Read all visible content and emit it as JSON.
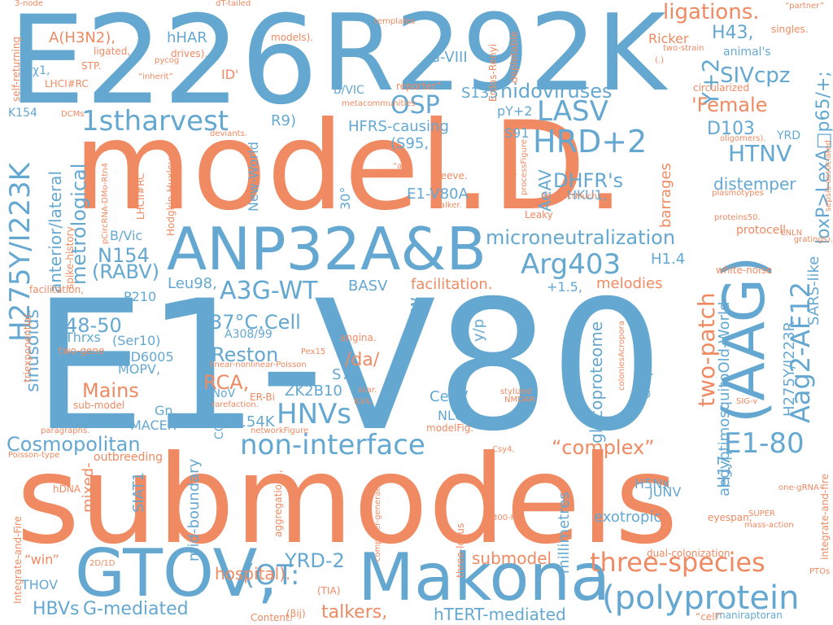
{
  "palette": {
    "blue": "#64a8d1",
    "orange": "#ef8a62"
  },
  "words": [
    {
      "text": "E1-V80",
      "color": "blue",
      "orient": "h"
    },
    {
      "text": "submodels",
      "color": "orange",
      "orient": "h"
    },
    {
      "text": "model.D.",
      "color": "orange",
      "orient": "h"
    },
    {
      "text": "E226",
      "color": "blue",
      "orient": "h"
    },
    {
      "text": "R292K",
      "color": "blue",
      "orient": "h"
    },
    {
      "text": "ANP32A&B",
      "color": "blue",
      "orient": "h"
    },
    {
      "text": "Makona",
      "color": "blue",
      "orient": "h"
    },
    {
      "text": "GTOV,",
      "color": "blue",
      "orient": "h"
    },
    {
      "text": "(AAG)",
      "color": "blue",
      "orient": "v"
    },
    {
      "text": "(polyprotein",
      "color": "blue",
      "orient": "h"
    },
    {
      "text": "three-species",
      "color": "orange",
      "orient": "h"
    },
    {
      "text": "non-interface",
      "color": "blue",
      "orient": "h"
    },
    {
      "text": "H275Y/I223K",
      "color": "blue",
      "orient": "v"
    },
    {
      "text": "Aag2-AF12",
      "color": "blue",
      "orient": "v"
    },
    {
      "text": "1stharvest",
      "color": "blue",
      "orient": "h"
    },
    {
      "text": "HRD+2",
      "color": "blue",
      "orient": "h"
    },
    {
      "text": "LASV",
      "color": "blue",
      "orient": "h"
    },
    {
      "text": "A3G-WT",
      "color": "blue",
      "orient": "h"
    },
    {
      "text": "Arg403",
      "color": "blue",
      "orient": "h"
    },
    {
      "text": "HNVs",
      "color": "blue",
      "orient": "h"
    },
    {
      "text": "E1-80",
      "color": "blue",
      "orient": "h"
    },
    {
      "text": "(OT:",
      "color": "blue",
      "orient": "h"
    },
    {
      "text": "OSP",
      "color": "blue",
      "orient": "h"
    },
    {
      "text": "HTNV",
      "color": "blue",
      "orient": "h"
    },
    {
      "text": "microneutralization",
      "color": "blue",
      "orient": "h"
    },
    {
      "text": "Cosmopolitan",
      "color": "blue",
      "orient": "h"
    },
    {
      "text": "nidoviruses",
      "color": "blue",
      "orient": "h"
    },
    {
      "text": "Y+2",
      "color": "blue",
      "orient": "v"
    },
    {
      "text": "two-patch",
      "color": "orange",
      "orient": "v"
    },
    {
      "text": "ligations.",
      "color": "orange",
      "orient": "h"
    },
    {
      "text": "'Female",
      "color": "orange",
      "orient": "h"
    },
    {
      "text": "“complex”",
      "color": "orange",
      "orient": "h"
    },
    {
      "text": "YRD-2",
      "color": "blue",
      "orient": "h"
    },
    {
      "text": "HBVs",
      "color": "blue",
      "orient": "h"
    },
    {
      "text": "G-mediated",
      "color": "blue",
      "orient": "h"
    },
    {
      "text": "talkers,",
      "color": "orange",
      "orient": "h"
    },
    {
      "text": "hTERT-mediated",
      "color": "blue",
      "orient": "h"
    },
    {
      "text": "hospital).",
      "color": "orange",
      "orient": "h"
    },
    {
      "text": "submodel",
      "color": "orange",
      "orient": "h"
    },
    {
      "text": "glycoproteome",
      "color": "blue",
      "orient": "v"
    },
    {
      "text": "metrological",
      "color": "blue",
      "orient": "v"
    },
    {
      "text": "anterior/lateral",
      "color": "blue",
      "orient": "v"
    },
    {
      "text": "37°C.Cell",
      "color": "blue",
      "orient": "h"
    },
    {
      "text": "Reston",
      "color": "blue",
      "orient": "h"
    },
    {
      "text": "RCA,",
      "color": "orange",
      "orient": "h"
    },
    {
      "text": "Mains",
      "color": "orange",
      "orient": "h"
    },
    {
      "text": "48-50",
      "color": "blue",
      "orient": "h"
    },
    {
      "text": "N154",
      "color": "blue",
      "orient": "h"
    },
    {
      "text": "(RABV)",
      "color": "blue",
      "orient": "h"
    },
    {
      "text": "sinusoids",
      "color": "blue",
      "orient": "v"
    },
    {
      "text": "DHFR's",
      "color": "blue",
      "orient": "h"
    },
    {
      "text": "SIVcpz",
      "color": "blue",
      "orient": "h"
    },
    {
      "text": "H43,",
      "color": "blue",
      "orient": "h"
    },
    {
      "text": "D103",
      "color": "blue",
      "orient": "h"
    },
    {
      "text": "distemper",
      "color": "blue",
      "orient": "h"
    },
    {
      "text": "loxP>LexA□p65/+;",
      "color": "blue",
      "orient": "v"
    },
    {
      "text": "aegyptimosquitoOld-World",
      "color": "blue",
      "orient": "v"
    },
    {
      "text": "H275Y/I223R",
      "color": "blue",
      "orient": "v"
    },
    {
      "text": "H17,",
      "color": "blue",
      "orient": "v"
    },
    {
      "text": "SARS-like",
      "color": "blue",
      "orient": "v"
    },
    {
      "text": "AeAV",
      "color": "blue",
      "orient": "v"
    },
    {
      "text": "E1-V80A",
      "color": "blue",
      "orient": "h"
    },
    {
      "text": "HFRS-causing",
      "color": "blue",
      "orient": "h"
    },
    {
      "text": "(S95,",
      "color": "blue",
      "orient": "h"
    },
    {
      "text": "S135",
      "color": "blue",
      "orient": "h"
    },
    {
      "text": "G-VIII",
      "color": "blue",
      "orient": "h"
    },
    {
      "text": "A(H3N2),",
      "color": "orange",
      "orient": "h"
    },
    {
      "text": "hHAR",
      "color": "blue",
      "orient": "h"
    },
    {
      "text": "H1.4",
      "color": "blue",
      "orient": "h"
    },
    {
      "text": "melodies",
      "color": "orange",
      "orient": "h"
    },
    {
      "text": "facilitation.",
      "color": "orange",
      "orient": "h"
    },
    {
      "text": "+1.5,",
      "color": "blue",
      "orient": "h"
    },
    {
      "text": "diapsid",
      "color": "blue",
      "orient": "v"
    },
    {
      "text": "barrages",
      "color": "orange",
      "orient": "v"
    },
    {
      "text": "Yaw",
      "color": "blue",
      "orient": "v"
    },
    {
      "text": "y/p",
      "color": "blue",
      "orient": "v"
    },
    {
      "text": "BASV",
      "color": "blue",
      "orient": "h"
    },
    {
      "text": "Leu98,",
      "color": "blue",
      "orient": "h"
    },
    {
      "text": "/da/",
      "color": "orange",
      "orient": "h"
    },
    {
      "text": "S74,",
      "color": "blue",
      "orient": "h"
    },
    {
      "text": "ZK2B10",
      "color": "blue",
      "orient": "h"
    },
    {
      "text": "E154K",
      "color": "blue",
      "orient": "h"
    },
    {
      "text": "CedV",
      "color": "blue",
      "orient": "h"
    },
    {
      "text": "NL63",
      "color": "blue",
      "orient": "h"
    },
    {
      "text": "H5Nx",
      "color": "blue",
      "orient": "h"
    },
    {
      "text": "JUNV",
      "color": "blue",
      "orient": "h"
    },
    {
      "text": "exotropic",
      "color": "blue",
      "orient": "h"
    },
    {
      "text": "millimetres",
      "color": "blue",
      "orient": "v"
    },
    {
      "text": "mid-boundary",
      "color": "blue",
      "orient": "v"
    },
    {
      "text": "SIAT1",
      "color": "blue",
      "orient": "v"
    },
    {
      "text": "mixed-",
      "color": "orange",
      "orient": "v"
    },
    {
      "text": "MACER",
      "color": "blue",
      "orient": "h"
    },
    {
      "text": "Gn,",
      "color": "blue",
      "orient": "h"
    },
    {
      "text": "HNoV",
      "color": "blue",
      "orient": "h"
    },
    {
      "text": "MOPV,",
      "color": "blue",
      "orient": "h"
    },
    {
      "text": "OD6005",
      "color": "blue",
      "orient": "h"
    },
    {
      "text": "(Ser10)",
      "color": "blue",
      "orient": "h"
    },
    {
      "text": "Thrxs",
      "color": "blue",
      "orient": "h"
    },
    {
      "text": "A308/99",
      "color": "blue",
      "orient": "h"
    },
    {
      "text": "P210",
      "color": "blue",
      "orient": "h"
    },
    {
      "text": "B/Vic",
      "color": "blue",
      "orient": "h"
    },
    {
      "text": "B/VIC",
      "color": "blue",
      "orient": "h"
    },
    {
      "text": "R9)",
      "color": "blue",
      "orient": "h"
    },
    {
      "text": "ID'",
      "color": "orange",
      "orient": "h"
    },
    {
      "text": "New-World",
      "color": "blue",
      "orient": "v"
    },
    {
      "text": "30°",
      "color": "blue",
      "orient": "v"
    },
    {
      "text": "HKU1,",
      "color": "blue",
      "orient": "h"
    },
    {
      "text": "S91",
      "color": "blue",
      "orient": "h"
    },
    {
      "text": "pY+2",
      "color": "blue",
      "orient": "h"
    },
    {
      "text": "Ricker",
      "color": "orange",
      "orient": "h"
    },
    {
      "text": "animal's",
      "color": "blue",
      "orient": "h"
    },
    {
      "text": "K154",
      "color": "blue",
      "orient": "h"
    },
    {
      "text": "χ1,",
      "color": "blue",
      "orient": "h"
    },
    {
      "text": "YRD",
      "color": "blue",
      "orient": "h"
    },
    {
      "text": "THOV",
      "color": "blue",
      "orient": "h"
    },
    {
      "text": "“win”",
      "color": "orange",
      "orient": "h"
    },
    {
      "text": "outbreeding",
      "color": "orange",
      "orient": "h"
    },
    {
      "text": "protocell",
      "color": "orange",
      "orient": "h"
    },
    {
      "text": "white-noise",
      "color": "orange",
      "orient": "h"
    },
    {
      "text": "Leaky",
      "color": "orange",
      "orient": "h"
    },
    {
      "text": "sleeve.",
      "color": "orange",
      "orient": "h"
    },
    {
      "text": "dual-colonization",
      "color": "orange",
      "orient": "h"
    },
    {
      "text": "maniraptoran",
      "color": "blue",
      "orient": "h"
    },
    {
      "text": "eyespan,",
      "color": "orange",
      "orient": "h"
    },
    {
      "text": "Integrate-and-Fire",
      "color": "orange",
      "orient": "v"
    },
    {
      "text": "integrate-and-fire",
      "color": "orange",
      "orient": "v"
    },
    {
      "text": "Hodgkin-Huxley",
      "color": "orange",
      "orient": "v"
    },
    {
      "text": "LHCII#RC",
      "color": "orange",
      "orient": "v"
    },
    {
      "text": "self-returning",
      "color": "orange",
      "orient": "v"
    },
    {
      "text": "triexponential",
      "color": "orange",
      "orient": "v"
    },
    {
      "text": "spike-history",
      "color": "orange",
      "orient": "v"
    },
    {
      "text": "aggregations,",
      "color": "orange",
      "orient": "v"
    },
    {
      "text": "three-locus",
      "color": "orange",
      "orient": "v"
    },
    {
      "text": "depletable",
      "color": "orange",
      "orient": "v"
    },
    {
      "text": "Erdos-Renyi",
      "color": "orange",
      "orient": "v"
    },
    {
      "text": "facilitation,",
      "color": "orange",
      "orient": "h"
    },
    {
      "text": "two-gene",
      "color": "orange",
      "orient": "h"
    },
    {
      "text": "sub-model",
      "color": "orange",
      "orient": "h"
    },
    {
      "text": "angina.",
      "color": "orange",
      "orient": "h"
    },
    {
      "text": "COP",
      "color": "blue",
      "orient": "v"
    },
    {
      "text": "ER-Bi",
      "color": "orange",
      "orient": "h"
    },
    {
      "text": "hDNA",
      "color": "orange",
      "orient": "h"
    },
    {
      "text": "ligated,",
      "color": "orange",
      "orient": "h"
    },
    {
      "text": "STP.",
      "color": "orange",
      "orient": "h"
    },
    {
      "text": "LHCI#RC",
      "color": "orange",
      "orient": "h"
    },
    {
      "text": "models).",
      "color": "orange",
      "orient": "h"
    },
    {
      "text": "drives).",
      "color": "orange",
      "orient": "h"
    },
    {
      "text": "reporter”",
      "color": "orange",
      "orient": "h"
    },
    {
      "text": "circularized",
      "color": "orange",
      "orient": "h"
    },
    {
      "text": "singles.",
      "color": "orange",
      "orient": "h"
    },
    {
      "text": "(TIA)",
      "color": "orange",
      "orient": "h"
    },
    {
      "text": "(βij)",
      "color": "orange",
      "orient": "h"
    },
    {
      "text": "Content.",
      "color": "orange",
      "orient": "h"
    },
    {
      "text": "modelFig.",
      "color": "orange",
      "orient": "h"
    },
    {
      "text": "scar.",
      "color": "orange",
      "orient": "h"
    },
    {
      "text": "ILVs,",
      "color": "orange",
      "orient": "h"
    },
    {
      "text": "Pex15",
      "color": "orange",
      "orient": "h"
    },
    {
      "text": "linear-nonlinear-Poisson",
      "color": "orange",
      "orient": "h"
    },
    {
      "text": "networkFigure",
      "color": "orange",
      "orient": "h"
    },
    {
      "text": "rarefaction.",
      "color": "orange",
      "orient": "h"
    },
    {
      "text": "deviants.",
      "color": "orange",
      "orient": "h"
    },
    {
      "text": "metacommunities",
      "color": "orange",
      "orient": "h"
    },
    {
      "text": "templates",
      "color": "orange",
      "orient": "h"
    },
    {
      "text": "dT-tailed",
      "color": "orange",
      "orient": "h"
    },
    {
      "text": "3-node",
      "color": "orange",
      "orient": "h"
    },
    {
      "text": "“partner”",
      "color": "orange",
      "orient": "h"
    },
    {
      "text": "two-strain",
      "color": "orange",
      "orient": "h"
    },
    {
      "text": "(.)",
      "color": "orange",
      "orient": "h"
    },
    {
      "text": "“inherit”",
      "color": "orange",
      "orient": "h"
    },
    {
      "text": "pycog",
      "color": "orange",
      "orient": "h"
    },
    {
      "text": "DCMs",
      "color": "orange",
      "orient": "h"
    },
    {
      "text": "“all",
      "color": "orange",
      "orient": "h"
    },
    {
      "text": "talker.",
      "color": "orange",
      "orient": "h"
    },
    {
      "text": "AbstractMuch",
      "color": "orange",
      "orient": "h"
    },
    {
      "text": "females).Table",
      "color": "orange",
      "orient": "v"
    },
    {
      "text": "processFigure",
      "color": "orange",
      "orient": "v"
    },
    {
      "text": "pCircRNA-DMo-Rtn4",
      "color": "orange",
      "orient": "v"
    },
    {
      "text": "oligomers).",
      "color": "orange",
      "orient": "h"
    },
    {
      "text": "plasmotypes",
      "color": "orange",
      "orient": "h"
    },
    {
      "text": "proteins50.",
      "color": "orange",
      "orient": "h"
    },
    {
      "text": "LNLN",
      "color": "orange",
      "orient": "h"
    },
    {
      "text": "gratings).",
      "color": "orange",
      "orient": "h"
    },
    {
      "text": "sepsis-associated",
      "color": "orange",
      "orient": "v"
    },
    {
      "text": "coloniesAcropora",
      "color": "orange",
      "orient": "v"
    },
    {
      "text": "stylized",
      "color": "orange",
      "orient": "h"
    },
    {
      "text": "NMDAR-",
      "color": "orange",
      "orient": "h"
    },
    {
      "text": "SIG-v",
      "color": "orange",
      "orient": "h"
    },
    {
      "text": "Csy4,",
      "color": "orange",
      "orient": "h"
    },
    {
      "text": "paragraphs.",
      "color": "orange",
      "orient": "h"
    },
    {
      "text": "Poisson-type",
      "color": "orange",
      "orient": "h"
    },
    {
      "text": "computer-generated",
      "color": "orange",
      "orient": "v"
    },
    {
      "text": "300-Hz",
      "color": "orange",
      "orient": "h"
    },
    {
      "text": "SUPER",
      "color": "orange",
      "orient": "h"
    },
    {
      "text": "mass-action",
      "color": "orange",
      "orient": "h"
    },
    {
      "text": "one-gRNA",
      "color": "orange",
      "orient": "h"
    },
    {
      "text": "PTOs",
      "color": "orange",
      "orient": "h"
    },
    {
      "text": "2D/1D",
      "color": "orange",
      "orient": "h"
    },
    {
      "text": "“cell”",
      "color": "orange",
      "orient": "h"
    }
  ]
}
